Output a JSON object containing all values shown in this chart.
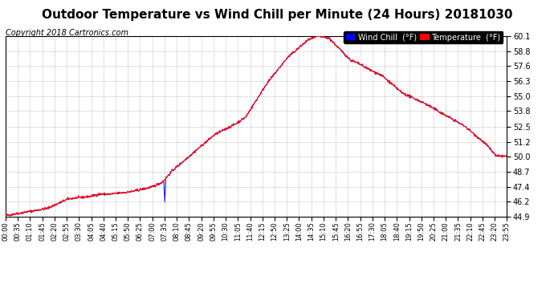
{
  "title": "Outdoor Temperature vs Wind Chill per Minute (24 Hours) 20181030",
  "copyright": "Copyright 2018 Cartronics.com",
  "ylim": [
    44.9,
    60.1
  ],
  "yticks": [
    44.9,
    46.2,
    47.4,
    48.7,
    50.0,
    51.2,
    52.5,
    53.8,
    55.0,
    56.3,
    57.6,
    58.8,
    60.1
  ],
  "ytick_labels": [
    "44.9",
    "46.2",
    "47.4",
    "48.7",
    "50.0",
    "51.2",
    "52.5",
    "53.8",
    "55.0",
    "56.3",
    "57.6",
    "58.8",
    "60.1"
  ],
  "temp_color": "#ff0000",
  "wind_color": "#0000ff",
  "background_color": "#ffffff",
  "grid_color": "#999999",
  "title_fontsize": 11,
  "copyright_fontsize": 7,
  "legend_wind_label": "Wind Chill  (°F)",
  "legend_temp_label": "Temperature  (°F)",
  "xtick_labels": [
    "00:00",
    "00:35",
    "01:10",
    "01:45",
    "02:20",
    "02:55",
    "03:30",
    "04:05",
    "04:40",
    "05:15",
    "05:50",
    "06:25",
    "07:00",
    "07:35",
    "08:10",
    "08:45",
    "09:20",
    "09:55",
    "10:30",
    "11:05",
    "11:40",
    "12:15",
    "12:50",
    "13:25",
    "14:00",
    "14:35",
    "15:10",
    "15:45",
    "16:20",
    "16:55",
    "17:30",
    "18:05",
    "18:40",
    "19:15",
    "19:50",
    "20:25",
    "21:00",
    "21:35",
    "22:10",
    "22:45",
    "23:20",
    "23:55"
  ],
  "num_points": 1440
}
